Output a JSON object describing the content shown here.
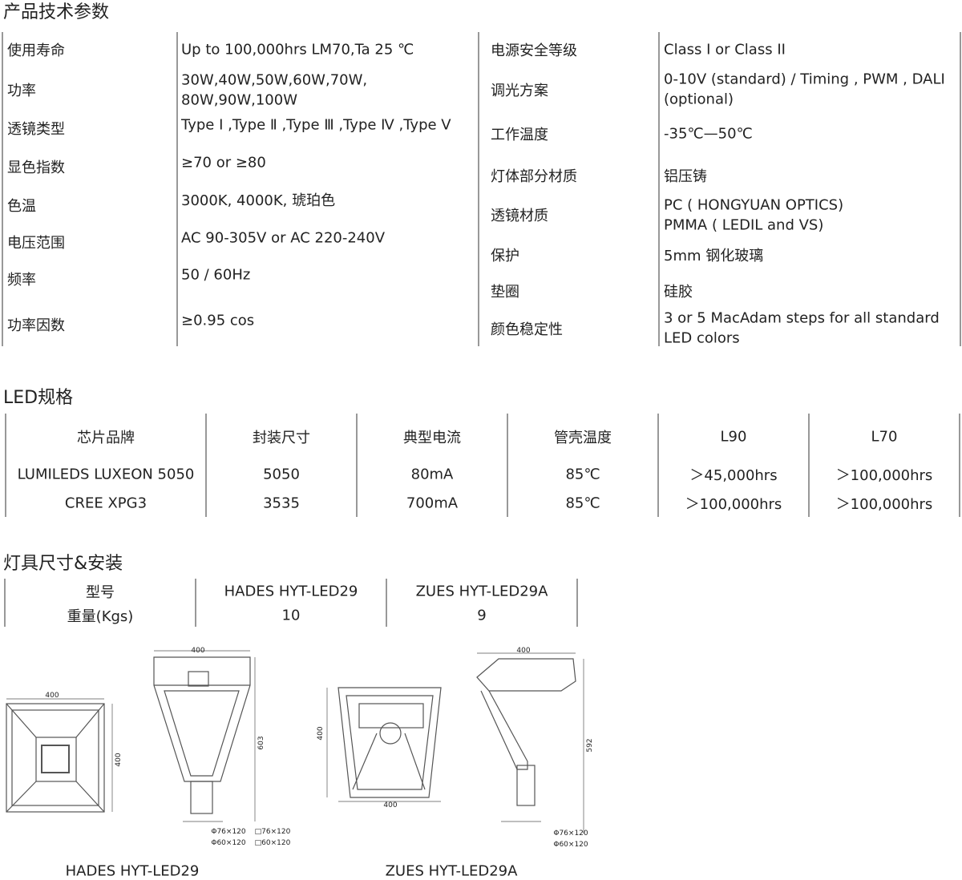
{
  "specs": {
    "title": "产品技术参数",
    "left": [
      {
        "label": "使用寿命",
        "value": [
          "Up to 100,000hrs LM70,Ta 25 ℃"
        ]
      },
      {
        "label": "功率",
        "value": [
          "30W,40W,50W,60W,70W,",
          "80W,90W,100W"
        ]
      },
      {
        "label": "透镜类型",
        "value": [
          "Type Ⅰ ,Type Ⅱ ,Type Ⅲ ,Type Ⅳ ,Type Ⅴ"
        ]
      },
      {
        "label": "显色指数",
        "value": [
          "≥70 or ≥80"
        ]
      },
      {
        "label": "色温",
        "value": [
          "3000K, 4000K, 琥珀色"
        ]
      },
      {
        "label": "电压范围",
        "value": [
          "AC 90-305V or AC 220-240V"
        ]
      },
      {
        "label": "频率",
        "value": [
          "50 / 60Hz"
        ]
      },
      {
        "label": "功率因数",
        "value": [
          "≥0.95 cos"
        ]
      }
    ],
    "right": [
      {
        "label": "电源安全等级",
        "value": [
          "Class I or Class II"
        ]
      },
      {
        "label": "调光方案",
        "value": [
          "0-10V (standard) / Timing , PWM , DALI",
          "(optional)"
        ]
      },
      {
        "label": "工作温度",
        "value": [
          "-35℃—50℃"
        ]
      },
      {
        "label": "灯体部分材质",
        "value": [
          "铝压铸"
        ]
      },
      {
        "label": "透镜材质",
        "value": [
          "PC ( HONGYUAN OPTICS)",
          "PMMA ( LEDIL and VS)"
        ]
      },
      {
        "label": "保护",
        "value": [
          "5mm 钢化玻璃"
        ]
      },
      {
        "label": "垫圈",
        "value": [
          "硅胶"
        ]
      },
      {
        "label": "颜色稳定性",
        "value": [
          "3 or 5 MacAdam steps for all standard",
          "LED colors"
        ]
      }
    ]
  },
  "led": {
    "title": "LED规格",
    "headers": [
      "芯片品牌",
      "封装尺寸",
      "典型电流",
      "管壳温度",
      "L90",
      "L70"
    ],
    "rows": [
      [
        "LUMILEDS LUXEON 5050",
        "5050",
        "80mA",
        "85℃",
        "＞45,000hrs",
        "＞100,000hrs"
      ],
      [
        "CREE XPG3",
        "3535",
        "700mA",
        "85℃",
        "＞100,000hrs",
        "＞100,000hrs"
      ]
    ]
  },
  "fixture": {
    "title": "灯具尺寸&安装",
    "headers": [
      "型号",
      "HADES HYT-LED29",
      "ZUES HYT-LED29A"
    ],
    "rows": [
      [
        "重量(Kgs)",
        "10",
        "9"
      ]
    ],
    "drawing1": {
      "dims": [
        "400",
        "400",
        "400",
        "603",
        "Φ76×120",
        "□76×120",
        "Φ60×120",
        "□60×120"
      ],
      "caption": "HADES HYT-LED29"
    },
    "drawing2": {
      "dims": [
        "400",
        "400",
        "400",
        "592",
        "Φ76×120",
        "Φ60×120"
      ],
      "caption": "ZUES HYT-LED29A"
    }
  }
}
